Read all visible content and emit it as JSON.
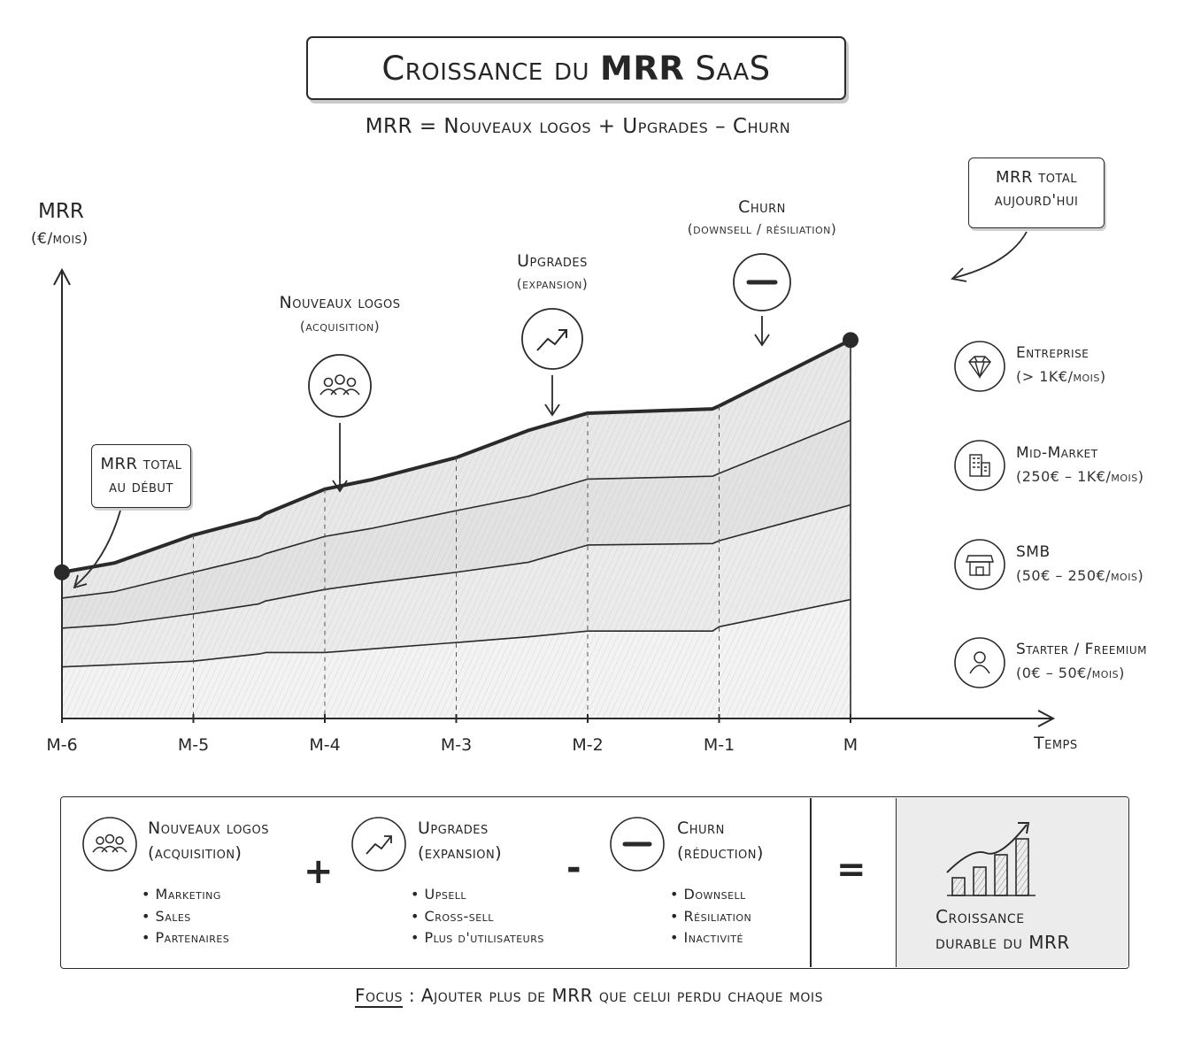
{
  "header": {
    "title_part1": "Croissance du",
    "title_part2": "MRR",
    "title_part3": "SaaS",
    "subtitle": "MRR = Nouveaux logos + Upgrades – Churn"
  },
  "callouts": {
    "start": [
      "MRR total",
      "au début"
    ],
    "end": [
      "MRR total",
      "aujourd'hui"
    ]
  },
  "annotations": [
    {
      "title": "Nouveaux logos",
      "sub": "(acquisition)",
      "icon": "users-icon"
    },
    {
      "title": "Upgrades",
      "sub": "(expansion)",
      "icon": "trend-up-icon"
    },
    {
      "title": "Churn",
      "sub": "(downsell / résiliation)",
      "icon": "minus-icon"
    }
  ],
  "segments": [
    {
      "name": "Entreprise",
      "range": "(> 1K€/mois)",
      "icon": "diamond-icon"
    },
    {
      "name": "Mid-Market",
      "range": "(250€ – 1K€/mois)",
      "icon": "building-icon"
    },
    {
      "name": "SMB",
      "range": "(50€ – 250€/mois)",
      "icon": "store-icon"
    },
    {
      "name": "Starter / Freemium",
      "range": "(0€ – 50€/mois)",
      "icon": "person-icon"
    }
  ],
  "chart_data": {
    "type": "area",
    "stacked": true,
    "ylabel": "MRR",
    "yunit": "(€/mois)",
    "xlabel": "Temps",
    "categories": [
      "M-6",
      "M-5",
      "M-4",
      "M-3",
      "M-2",
      "M-1",
      "M"
    ],
    "x_ticks": [
      "M-6",
      "M-5",
      "M-4",
      "M-3",
      "M-2",
      "M-1",
      "M"
    ],
    "x": [
      0,
      0.4,
      1.0,
      1.5,
      1.55,
      2.0,
      2.35,
      3.0,
      3.55,
      4.0,
      4.95,
      5.0,
      6.0
    ],
    "series": [
      {
        "name": "Starter / Freemium",
        "values": [
          3.6,
          3.75,
          4.0,
          4.5,
          4.6,
          4.6,
          4.85,
          5.3,
          5.7,
          6.1,
          6.1,
          6.4,
          8.3
        ]
      },
      {
        "name": "SMB",
        "values": [
          2.7,
          2.8,
          3.3,
          3.5,
          3.6,
          4.4,
          4.6,
          4.9,
          5.2,
          6.0,
          6.1,
          6.0,
          6.6
        ]
      },
      {
        "name": "Mid-Market",
        "values": [
          2.1,
          2.3,
          2.9,
          3.3,
          3.3,
          3.7,
          3.8,
          4.3,
          4.6,
          4.6,
          4.7,
          4.7,
          5.9
        ]
      },
      {
        "name": "Entreprise",
        "values": [
          1.8,
          2.0,
          2.6,
          2.7,
          2.8,
          3.3,
          3.4,
          3.7,
          4.6,
          4.6,
          4.7,
          4.7,
          5.6
        ]
      }
    ],
    "ylim": [
      0,
      32
    ],
    "grid": false,
    "legend": "right"
  },
  "bottom": {
    "components": [
      {
        "title": "Nouveaux logos",
        "sub": "(acquisition)",
        "icon": "users-icon",
        "bullets": [
          "Marketing",
          "Sales",
          "Partenaires"
        ]
      },
      {
        "title": "Upgrades",
        "sub": "(expansion)",
        "icon": "trend-up-icon",
        "bullets": [
          "Upsell",
          "Cross-sell",
          "Plus d'utilisateurs"
        ]
      },
      {
        "title": "Churn",
        "sub": "(réduction)",
        "icon": "minus-icon",
        "bullets": [
          "Downsell",
          "Résiliation",
          "Inactivité"
        ]
      }
    ],
    "operators": [
      "+",
      "-",
      "="
    ],
    "result": {
      "line1": "Croissance",
      "line2": "durable du MRR",
      "icon": "growth-bars-icon"
    }
  },
  "focus": {
    "key": "Focus",
    "text": " : Ajouter plus de MRR que celui perdu chaque mois"
  }
}
